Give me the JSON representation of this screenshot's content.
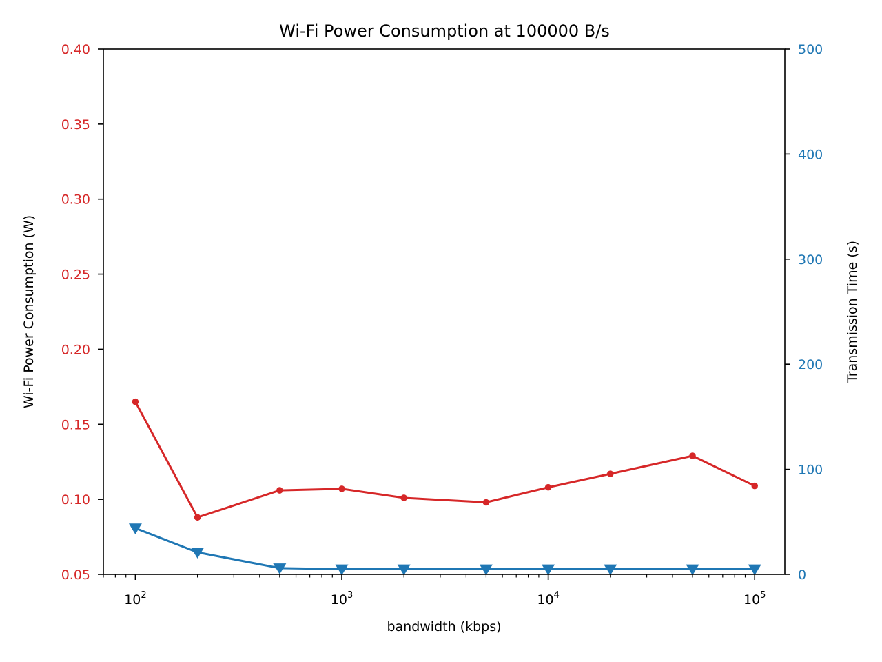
{
  "colors": {
    "power": "#d62728",
    "time": "#1f77b4",
    "axis": "#000000",
    "background": "#ffffff"
  },
  "chart_data": {
    "type": "line",
    "title": "Wi-Fi Power Consumption at 100000 B/s",
    "xlabel": "bandwidth (kbps)",
    "xscale": "log",
    "x_tick_labels": [
      {
        "base": "10",
        "exp": "2",
        "value": 100
      },
      {
        "base": "10",
        "exp": "3",
        "value": 1000
      },
      {
        "base": "10",
        "exp": "4",
        "value": 10000
      },
      {
        "base": "10",
        "exp": "5",
        "value": 100000
      }
    ],
    "x": [
      100,
      200,
      500,
      1000,
      2000,
      5000,
      10000,
      20000,
      50000,
      100000
    ],
    "xlim": [
      70,
      140000
    ],
    "grid": false,
    "left_axis": {
      "label": "Wi-Fi Power Consumption (W)",
      "ylim": [
        0.05,
        0.4
      ],
      "ticks": [
        "0.05",
        "0.10",
        "0.15",
        "0.20",
        "0.25",
        "0.30",
        "0.35",
        "0.40"
      ]
    },
    "right_axis": {
      "label": "Transmission Time (s)",
      "ylim": [
        0,
        500
      ],
      "ticks": [
        "0",
        "100",
        "200",
        "300",
        "400",
        "500"
      ]
    },
    "series": [
      {
        "axis": "left",
        "marker": "circle",
        "values": [
          0.165,
          0.088,
          0.106,
          0.107,
          0.101,
          0.098,
          0.108,
          0.117,
          0.129,
          0.109
        ]
      },
      {
        "axis": "right",
        "marker": "triangle-down",
        "values": [
          44,
          21,
          6,
          5,
          5,
          5,
          5,
          5,
          5,
          5
        ]
      }
    ]
  }
}
